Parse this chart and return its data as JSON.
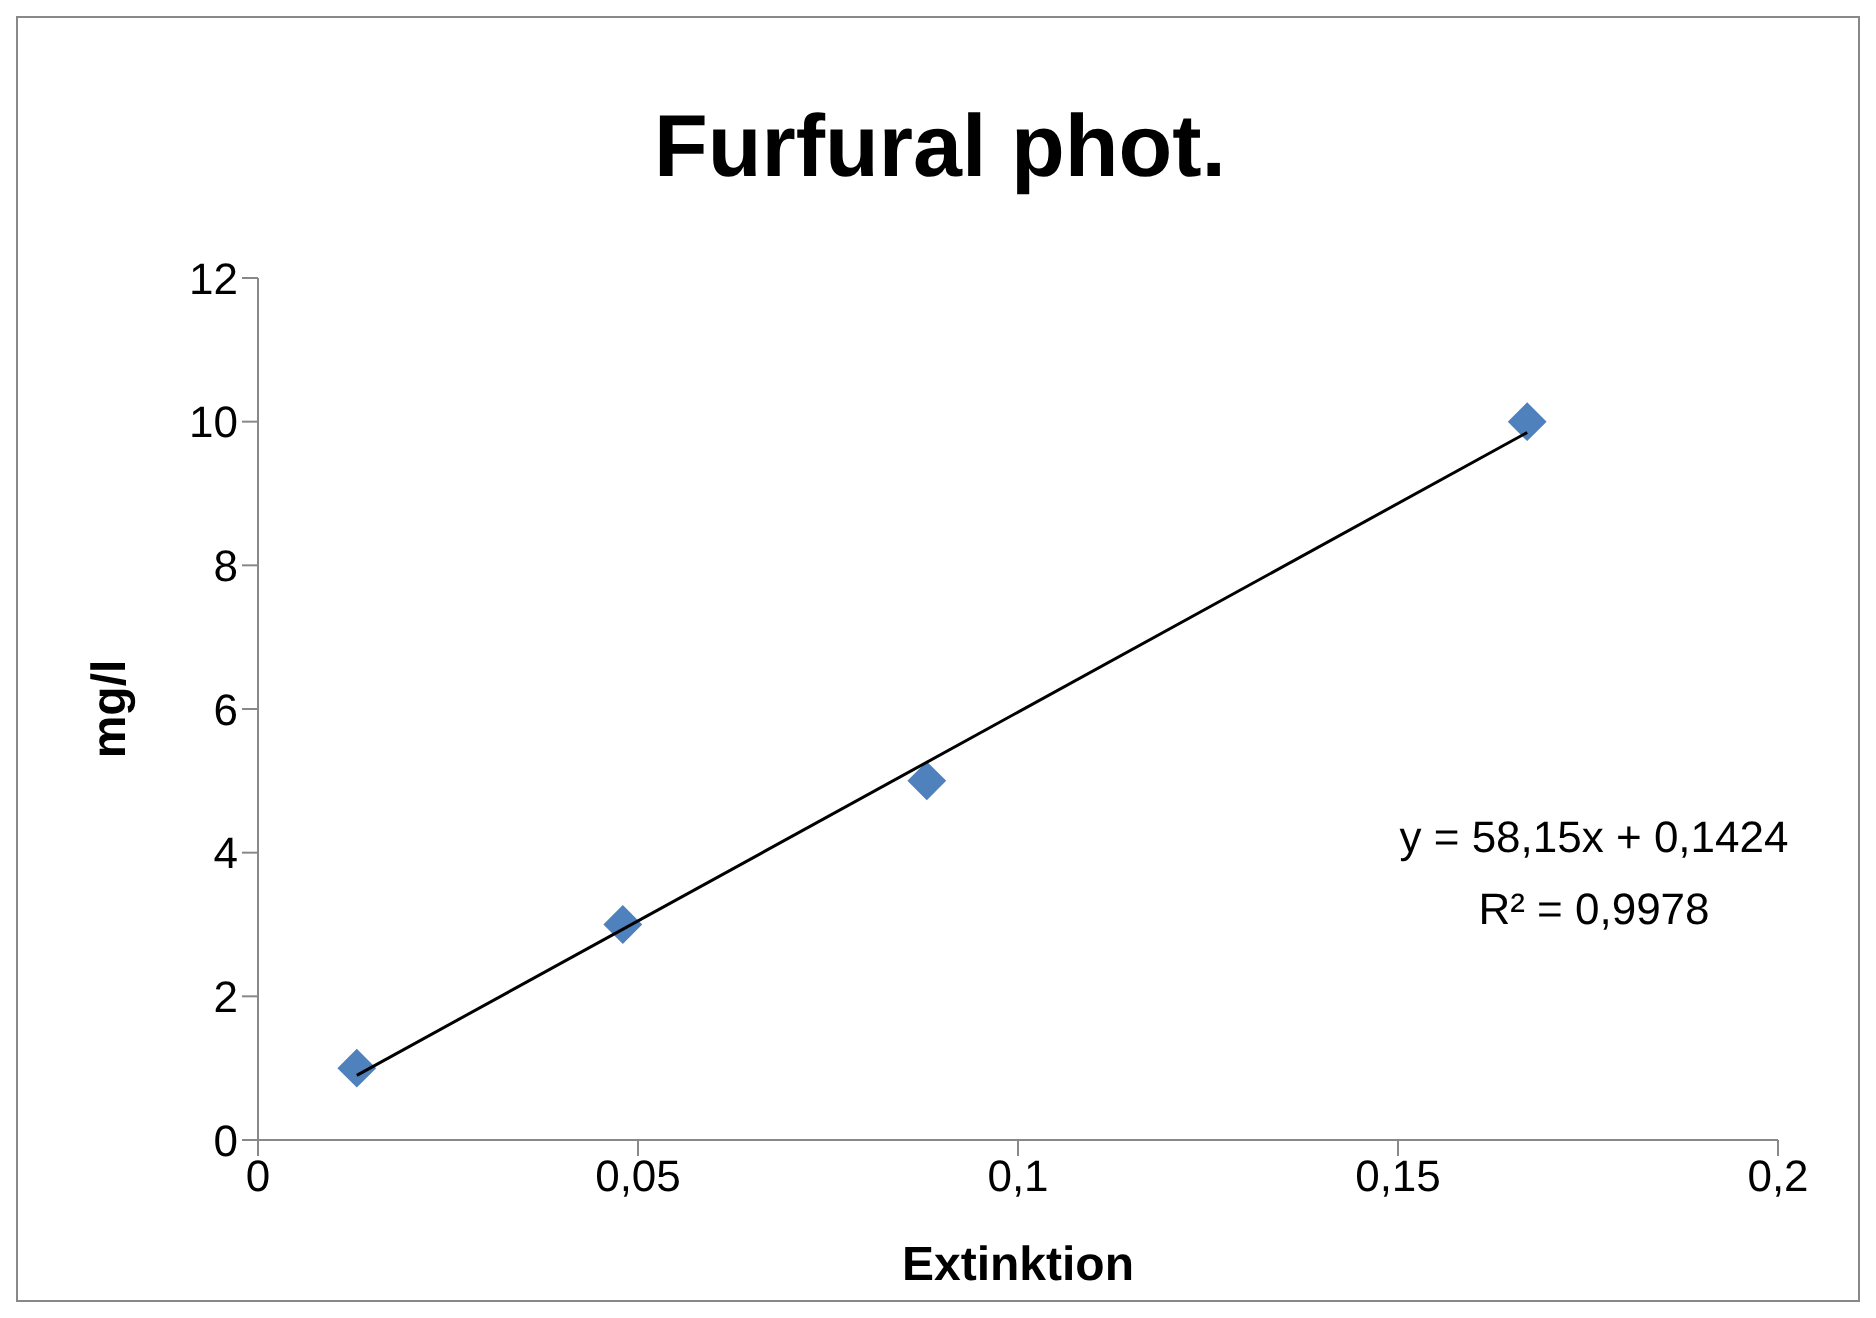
{
  "chart_data": {
    "type": "scatter",
    "title": "Furfural phot.",
    "xlabel": "Extinktion",
    "ylabel": "mg/l",
    "xlim": [
      0,
      0.2
    ],
    "xticks": [
      0,
      {
        "value": 0.05,
        "label": "0,05"
      },
      {
        "value": 0.1,
        "label": "0,1"
      },
      {
        "value": 0.15,
        "label": "0,15"
      },
      {
        "value": 0.2,
        "label": "0,2"
      }
    ],
    "ylim": [
      0,
      12
    ],
    "yticks": [
      0,
      2,
      4,
      6,
      8,
      10,
      12
    ],
    "series": [
      {
        "color": "#4f81bd",
        "marker": "diamond",
        "x": [
          0.013,
          0.048,
          0.088,
          0.167
        ],
        "values": [
          1,
          3,
          5,
          10
        ]
      },
      {
        "type": "line",
        "color": "#000000",
        "marker": "none",
        "line_style": "solid",
        "x": [
          0.013,
          0.167
        ],
        "values": [
          0.9,
          9.85
        ]
      }
    ],
    "annotations": [
      "y = 58,15x + 0,1424",
      "R² = 0,9978"
    ]
  }
}
